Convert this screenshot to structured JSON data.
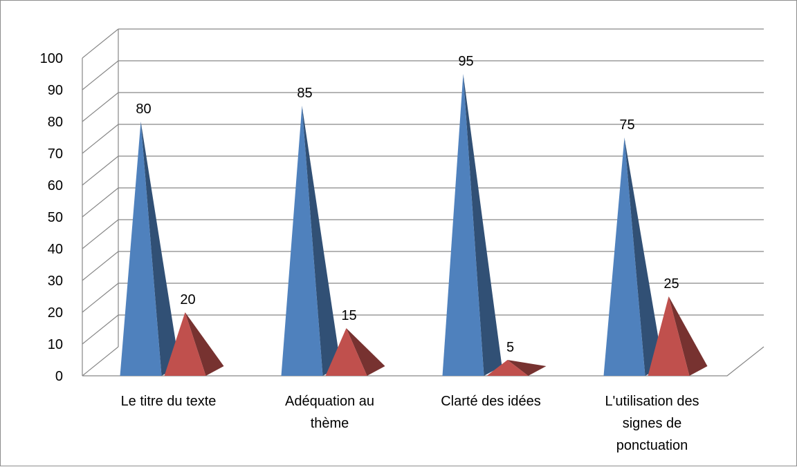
{
  "chart_data": {
    "type": "bar",
    "style": "3d-pyramid",
    "categories": [
      "Le titre du texte",
      "Adéquation au thème",
      "Clarté des idées",
      "L'utilisation des signes de ponctuation"
    ],
    "category_lines": [
      [
        "Le titre du texte"
      ],
      [
        "Adéquation au",
        "thème"
      ],
      [
        "Clarté des idées"
      ],
      [
        "L'utilisation des",
        "signes de",
        "ponctuation"
      ]
    ],
    "series": [
      {
        "values": [
          80,
          85,
          95,
          75
        ],
        "color": "#4f81bd"
      },
      {
        "values": [
          20,
          15,
          5,
          25
        ],
        "color": "#c0504d"
      }
    ],
    "y_ticks": [
      "0",
      "10",
      "20",
      "30",
      "40",
      "50",
      "60",
      "70",
      "80",
      "90",
      "100"
    ],
    "ylim": [
      0,
      100
    ],
    "grid": true,
    "legend": "none"
  }
}
